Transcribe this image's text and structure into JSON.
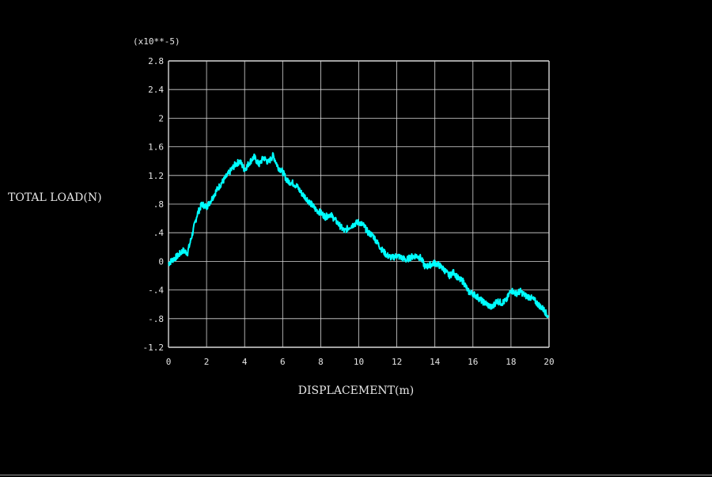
{
  "colors": {
    "background": "#000000",
    "grid": "#d8d8d8",
    "axis_text": "#e6e6e6",
    "series": "#00ffff"
  },
  "chart_data": {
    "type": "line",
    "xlabel": "DISPLACEMENT(m)",
    "ylabel": "TOTAL LOAD(N)",
    "y_multiplier": "(x10**-5)",
    "xlim": [
      0,
      20
    ],
    "ylim": [
      -1.2,
      2.8
    ],
    "grid": true,
    "x_ticks": [
      {
        "value": 0,
        "label": "0"
      },
      {
        "value": 2,
        "label": "2"
      },
      {
        "value": 4,
        "label": "4"
      },
      {
        "value": 6,
        "label": "6"
      },
      {
        "value": 8,
        "label": "8"
      },
      {
        "value": 10,
        "label": "10"
      },
      {
        "value": 12,
        "label": "12"
      },
      {
        "value": 14,
        "label": "14"
      },
      {
        "value": 16,
        "label": "16"
      },
      {
        "value": 18,
        "label": "18"
      },
      {
        "value": 20,
        "label": "20"
      }
    ],
    "y_ticks": [
      {
        "value": 2.8,
        "label": "2.8"
      },
      {
        "value": 2.4,
        "label": "2.4"
      },
      {
        "value": 2.0,
        "label": "2"
      },
      {
        "value": 1.6,
        "label": "1.6"
      },
      {
        "value": 1.2,
        "label": "1.2"
      },
      {
        "value": 0.8,
        "label": ".8"
      },
      {
        "value": 0.4,
        "label": ".4"
      },
      {
        "value": 0.0,
        "label": "0"
      },
      {
        "value": -0.4,
        "label": "-.4"
      },
      {
        "value": -0.8,
        "label": "-.8"
      },
      {
        "value": -1.2,
        "label": "-1.2"
      }
    ],
    "series": [
      {
        "x": [
          0,
          0.25,
          0.5,
          0.75,
          1.0,
          1.25,
          1.5,
          1.75,
          2.0,
          2.25,
          2.5,
          2.75,
          3.0,
          3.25,
          3.5,
          3.75,
          4.0,
          4.25,
          4.5,
          4.75,
          5.0,
          5.25,
          5.5,
          5.75,
          6.0,
          6.25,
          6.5,
          6.75,
          7.0,
          7.25,
          7.5,
          7.75,
          8.0,
          8.25,
          8.5,
          8.75,
          9.0,
          9.25,
          9.5,
          9.75,
          10.0,
          10.25,
          10.5,
          10.75,
          11.0,
          11.25,
          11.5,
          11.75,
          12.0,
          12.25,
          12.5,
          12.75,
          13.0,
          13.25,
          13.5,
          13.75,
          14.0,
          14.25,
          14.5,
          14.75,
          15.0,
          15.25,
          15.5,
          15.75,
          16.0,
          16.25,
          16.5,
          16.75,
          17.0,
          17.25,
          17.5,
          17.75,
          18.0,
          18.25,
          18.5,
          18.75,
          19.0,
          19.25,
          19.5,
          19.75,
          19.95
        ],
        "y": [
          -0.03,
          0.03,
          0.08,
          0.15,
          0.12,
          0.38,
          0.65,
          0.8,
          0.76,
          0.86,
          0.98,
          1.08,
          1.17,
          1.26,
          1.35,
          1.4,
          1.28,
          1.38,
          1.46,
          1.35,
          1.45,
          1.38,
          1.48,
          1.32,
          1.25,
          1.12,
          1.1,
          1.05,
          0.95,
          0.88,
          0.8,
          0.72,
          0.68,
          0.62,
          0.66,
          0.58,
          0.5,
          0.42,
          0.48,
          0.52,
          0.55,
          0.5,
          0.4,
          0.36,
          0.25,
          0.15,
          0.08,
          0.05,
          0.08,
          0.05,
          0.02,
          0.06,
          0.08,
          0.05,
          -0.08,
          -0.05,
          -0.02,
          -0.06,
          -0.12,
          -0.2,
          -0.15,
          -0.25,
          -0.28,
          -0.42,
          -0.45,
          -0.5,
          -0.56,
          -0.6,
          -0.65,
          -0.55,
          -0.58,
          -0.55,
          -0.4,
          -0.45,
          -0.42,
          -0.48,
          -0.5,
          -0.55,
          -0.62,
          -0.68,
          -0.78
        ]
      }
    ]
  }
}
